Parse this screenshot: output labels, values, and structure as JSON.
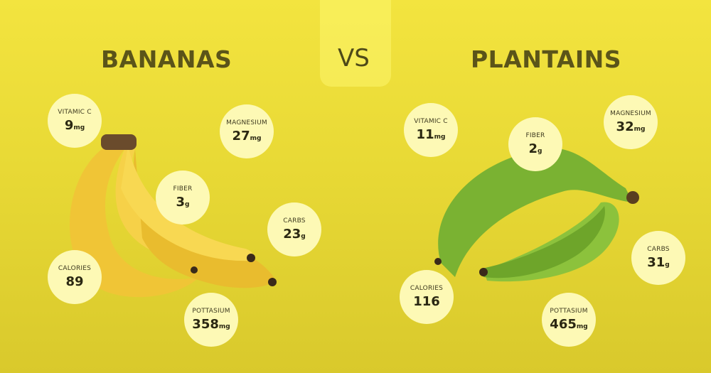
{
  "left": {
    "title": "BANANAS",
    "stats": [
      {
        "label": "VITAMIC C",
        "value": "9",
        "unit": "mg"
      },
      {
        "label": "MAGNESIUM",
        "value": "27",
        "unit": "mg"
      },
      {
        "label": "FIBER",
        "value": "3",
        "unit": "g"
      },
      {
        "label": "CARBS",
        "value": "23",
        "unit": "g"
      },
      {
        "label": "CALORIES",
        "value": "89",
        "unit": ""
      },
      {
        "label": "POTTASIUM",
        "value": "358",
        "unit": "mg"
      }
    ]
  },
  "vs": "VS",
  "right": {
    "title": "PLANTAINS",
    "stats": [
      {
        "label": "VITAMIC C",
        "value": "11",
        "unit": "mg"
      },
      {
        "label": "FIBER",
        "value": "2",
        "unit": "g"
      },
      {
        "label": "MAGNESIUM",
        "value": "32",
        "unit": "mg"
      },
      {
        "label": "CARBS",
        "value": "31",
        "unit": "g"
      },
      {
        "label": "CALORIES",
        "value": "116",
        "unit": ""
      },
      {
        "label": "POTTASIUM",
        "value": "465",
        "unit": "mg"
      }
    ]
  },
  "colors": {
    "background": "#e8d935",
    "title": "#5b5419",
    "circle": "#fdf9b5",
    "banana": "#f2c83a",
    "plantain": "#7fb734"
  }
}
